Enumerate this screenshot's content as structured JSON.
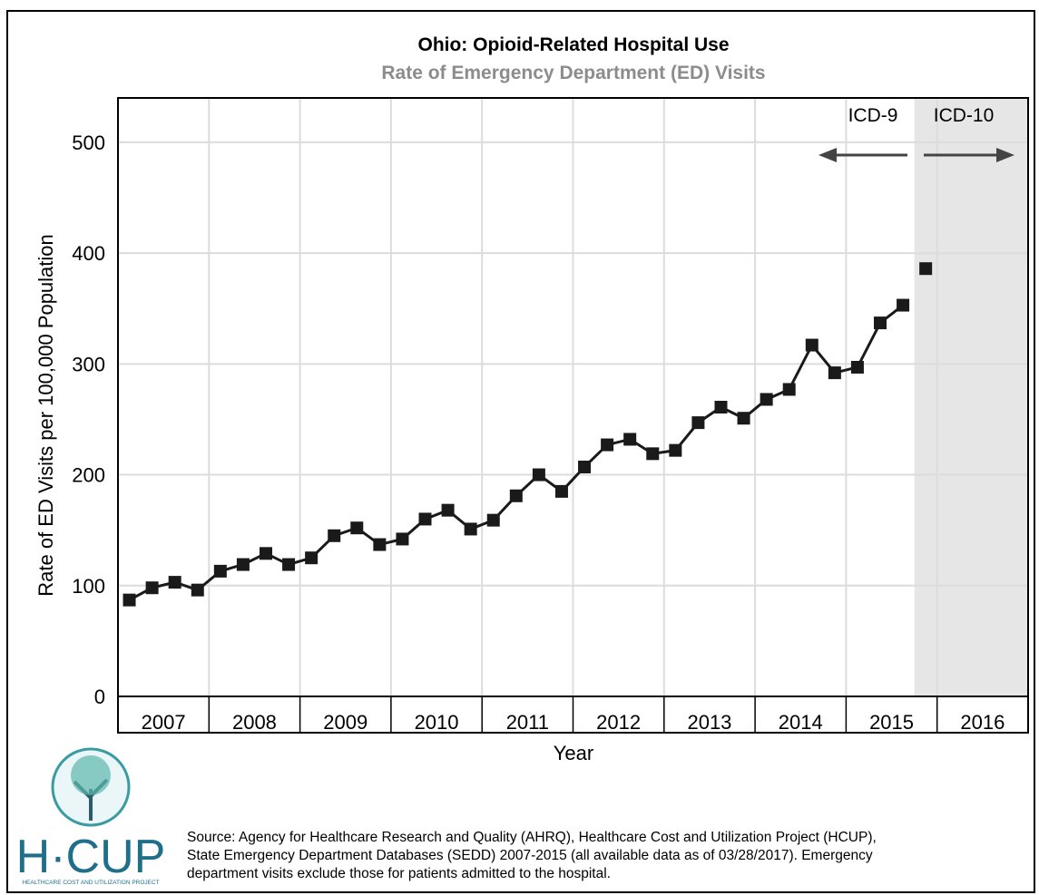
{
  "chart_data": {
    "type": "line",
    "title": "Ohio: Opioid-Related Hospital Use",
    "subtitle": "Rate of Emergency Department (ED) Visits",
    "y_label": "Rate of ED Visits per 100,000 Population",
    "x_label": "Year",
    "year_labels": [
      "2007",
      "2008",
      "2009",
      "2010",
      "2011",
      "2012",
      "2013",
      "2014",
      "2015",
      "2016"
    ],
    "categories": [
      null,
      null,
      null,
      null,
      null,
      null,
      null,
      null,
      null,
      null,
      null,
      null,
      null,
      null,
      null,
      null,
      null,
      null,
      null,
      null,
      null,
      null,
      null,
      null,
      null,
      null,
      null,
      null,
      null,
      null,
      null,
      null,
      null,
      null,
      null,
      null,
      null,
      null,
      null,
      null
    ],
    "series": [
      {
        "name": "ICD-9",
        "color": "#1a1a1a",
        "values": [
          87,
          98,
          103,
          96,
          113,
          119,
          129,
          119,
          125,
          145,
          152,
          137,
          142,
          160,
          168,
          151,
          159,
          181,
          200,
          185,
          207,
          227,
          232,
          219,
          222,
          247,
          261,
          251,
          268,
          277,
          317,
          292,
          297,
          337,
          353,
          null,
          null,
          null,
          null,
          null
        ]
      },
      {
        "name": "ICD-10",
        "color": "#1a1a1a",
        "values": [
          null,
          null,
          null,
          null,
          null,
          null,
          null,
          null,
          null,
          null,
          null,
          null,
          null,
          null,
          null,
          null,
          null,
          null,
          null,
          null,
          null,
          null,
          null,
          null,
          null,
          null,
          null,
          null,
          null,
          null,
          null,
          null,
          null,
          null,
          null,
          386,
          null,
          null,
          null,
          null
        ]
      }
    ],
    "ylim": [
      0,
      540
    ],
    "yticks": [
      0,
      100,
      200,
      300,
      400,
      500
    ],
    "grid": true,
    "source": [
      "Source: Agency for Healthcare Research and Quality (AHRQ), Healthcare Cost and Utilization Project (HCUP),",
      "State Emergency Department Databases (SEDD) 2007-2015 (all available data as of 03/28/2017). Emergency",
      "department visits exclude those for patients admitted to the hospital."
    ],
    "logo": {
      "name": "H·CUP",
      "tagline": "HEALTHCARE COST AND UTILIZATION PROJECT"
    }
  }
}
